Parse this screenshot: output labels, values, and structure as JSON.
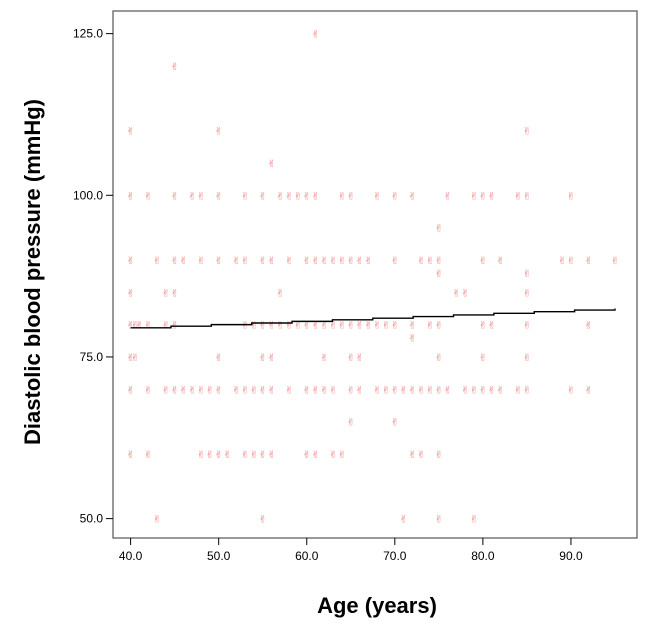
{
  "chart_data": {
    "type": "scatter",
    "xlabel": "Age (years)",
    "ylabel": "Diastolic blood pressure (mmHg)",
    "xlim": [
      38.0,
      97.5
    ],
    "ylim": [
      47.0,
      128.5
    ],
    "xticks": [
      40.0,
      50.0,
      60.0,
      70.0,
      80.0,
      90.0
    ],
    "xtick_labels": [
      "40.0",
      "50.0",
      "60.0",
      "70.0",
      "80.0",
      "90.0"
    ],
    "yticks": [
      50.0,
      75.0,
      100.0,
      125.0
    ],
    "ytick_labels": [
      "50.0",
      "75.0",
      "100.0",
      "125.0"
    ],
    "grid": false,
    "point_color": "#f07a7a",
    "line_color": "#000000",
    "marker": "✌",
    "fit_line": {
      "x": [
        40,
        95
      ],
      "y": [
        79.5,
        82.5
      ]
    },
    "points": [
      [
        40,
        110
      ],
      [
        40,
        100
      ],
      [
        40,
        90
      ],
      [
        40,
        85
      ],
      [
        40,
        80
      ],
      [
        40,
        75
      ],
      [
        40,
        70
      ],
      [
        40,
        60
      ],
      [
        40.5,
        80
      ],
      [
        40.5,
        75
      ],
      [
        41,
        80
      ],
      [
        42,
        100
      ],
      [
        42,
        80
      ],
      [
        42,
        70
      ],
      [
        42,
        60
      ],
      [
        43,
        90
      ],
      [
        43,
        50
      ],
      [
        44,
        85
      ],
      [
        44,
        80
      ],
      [
        44,
        70
      ],
      [
        45,
        120
      ],
      [
        45,
        100
      ],
      [
        45,
        90
      ],
      [
        45,
        85
      ],
      [
        45,
        80
      ],
      [
        45,
        70
      ],
      [
        46,
        90
      ],
      [
        46,
        70
      ],
      [
        47,
        100
      ],
      [
        47,
        70
      ],
      [
        48,
        100
      ],
      [
        48,
        90
      ],
      [
        48,
        70
      ],
      [
        48,
        60
      ],
      [
        49,
        70
      ],
      [
        49,
        60
      ],
      [
        50,
        110
      ],
      [
        50,
        100
      ],
      [
        50,
        90
      ],
      [
        50,
        75
      ],
      [
        50,
        70
      ],
      [
        50,
        60
      ],
      [
        51,
        60
      ],
      [
        52,
        90
      ],
      [
        52,
        70
      ],
      [
        53,
        100
      ],
      [
        53,
        90
      ],
      [
        53,
        80
      ],
      [
        53,
        70
      ],
      [
        53,
        60
      ],
      [
        54,
        80
      ],
      [
        54,
        70
      ],
      [
        54,
        60
      ],
      [
        55,
        100
      ],
      [
        55,
        90
      ],
      [
        55,
        80
      ],
      [
        55,
        75
      ],
      [
        55,
        70
      ],
      [
        55,
        60
      ],
      [
        55,
        50
      ],
      [
        56,
        105
      ],
      [
        56,
        90
      ],
      [
        56,
        80
      ],
      [
        56,
        75
      ],
      [
        56,
        70
      ],
      [
        56,
        60
      ],
      [
        57,
        100
      ],
      [
        57,
        85
      ],
      [
        57,
        80
      ],
      [
        58,
        100
      ],
      [
        58,
        90
      ],
      [
        58,
        80
      ],
      [
        58,
        70
      ],
      [
        59,
        100
      ],
      [
        59,
        80
      ],
      [
        60,
        100
      ],
      [
        60,
        90
      ],
      [
        60,
        80
      ],
      [
        60,
        70
      ],
      [
        60,
        60
      ],
      [
        61,
        125
      ],
      [
        61,
        100
      ],
      [
        61,
        90
      ],
      [
        61,
        80
      ],
      [
        61,
        70
      ],
      [
        61,
        60
      ],
      [
        62,
        90
      ],
      [
        62,
        80
      ],
      [
        62,
        75
      ],
      [
        62,
        70
      ],
      [
        63,
        90
      ],
      [
        63,
        80
      ],
      [
        63,
        70
      ],
      [
        63,
        60
      ],
      [
        64,
        100
      ],
      [
        64,
        90
      ],
      [
        64,
        80
      ],
      [
        64,
        60
      ],
      [
        65,
        100
      ],
      [
        65,
        90
      ],
      [
        65,
        80
      ],
      [
        65,
        75
      ],
      [
        65,
        70
      ],
      [
        65,
        65
      ],
      [
        66,
        90
      ],
      [
        66,
        80
      ],
      [
        66,
        75
      ],
      [
        66,
        70
      ],
      [
        67,
        90
      ],
      [
        67,
        80
      ],
      [
        68,
        100
      ],
      [
        68,
        80
      ],
      [
        68,
        70
      ],
      [
        69,
        80
      ],
      [
        69,
        70
      ],
      [
        70,
        100
      ],
      [
        70,
        90
      ],
      [
        70,
        80
      ],
      [
        70,
        70
      ],
      [
        70,
        65
      ],
      [
        71,
        70
      ],
      [
        71,
        50
      ],
      [
        72,
        100
      ],
      [
        72,
        80
      ],
      [
        72,
        78
      ],
      [
        72,
        70
      ],
      [
        72,
        60
      ],
      [
        73,
        90
      ],
      [
        73,
        70
      ],
      [
        73,
        60
      ],
      [
        74,
        90
      ],
      [
        74,
        80
      ],
      [
        74,
        70
      ],
      [
        75,
        95
      ],
      [
        75,
        90
      ],
      [
        75,
        88
      ],
      [
        75,
        80
      ],
      [
        75,
        75
      ],
      [
        75,
        70
      ],
      [
        75,
        60
      ],
      [
        75,
        50
      ],
      [
        76,
        100
      ],
      [
        76,
        70
      ],
      [
        77,
        85
      ],
      [
        78,
        85
      ],
      [
        78,
        70
      ],
      [
        79,
        100
      ],
      [
        79,
        70
      ],
      [
        79,
        50
      ],
      [
        80,
        100
      ],
      [
        80,
        90
      ],
      [
        80,
        80
      ],
      [
        80,
        75
      ],
      [
        80,
        70
      ],
      [
        81,
        100
      ],
      [
        81,
        80
      ],
      [
        81,
        70
      ],
      [
        82,
        90
      ],
      [
        82,
        70
      ],
      [
        84,
        100
      ],
      [
        84,
        70
      ],
      [
        85,
        110
      ],
      [
        85,
        100
      ],
      [
        85,
        88
      ],
      [
        85,
        85
      ],
      [
        85,
        80
      ],
      [
        85,
        75
      ],
      [
        85,
        70
      ],
      [
        89,
        90
      ],
      [
        90,
        100
      ],
      [
        90,
        90
      ],
      [
        90,
        70
      ],
      [
        92,
        90
      ],
      [
        92,
        80
      ],
      [
        92,
        70
      ],
      [
        95,
        90
      ]
    ]
  }
}
